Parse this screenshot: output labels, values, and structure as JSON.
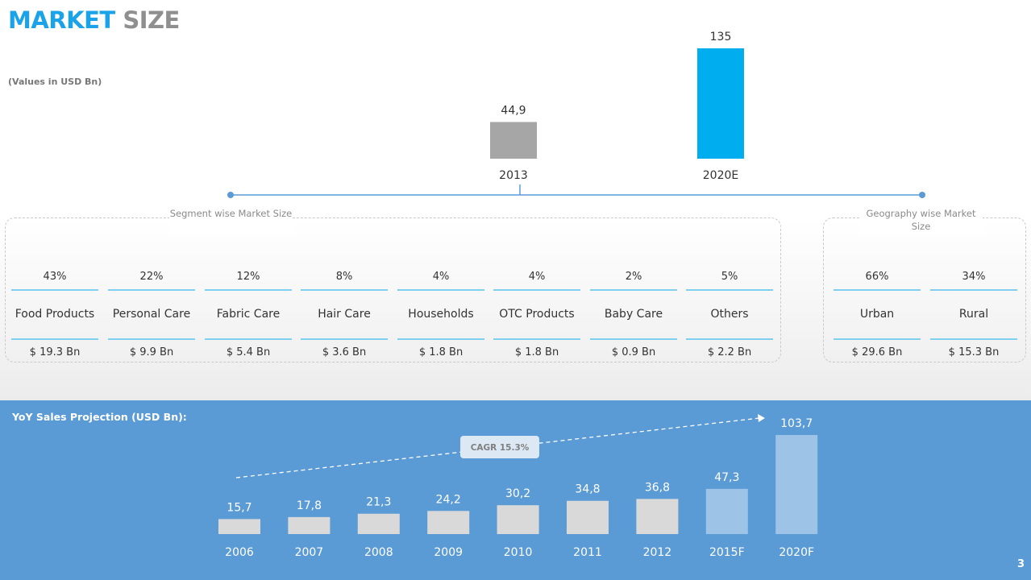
{
  "header": {
    "title_part1": "MARKET",
    "title_part2": "SIZE",
    "subnote": "(Values in USD Bn)"
  },
  "segments_label": "Segment wise Market Size",
  "geography_label": "Geography wise Market Size",
  "segments": [
    {
      "pct": "43%",
      "name": "Food Products",
      "value": "$ 19.3 Bn"
    },
    {
      "pct": "22%",
      "name": "Personal Care",
      "value": "$ 9.9 Bn"
    },
    {
      "pct": "12%",
      "name": "Fabric Care",
      "value": "$ 5.4 Bn"
    },
    {
      "pct": "8%",
      "name": "Hair Care",
      "value": "$ 3.6 Bn"
    },
    {
      "pct": "4%",
      "name": "Households",
      "value": "$ 1.8 Bn"
    },
    {
      "pct": "4%",
      "name": "OTC Products",
      "value": "$ 1.8 Bn"
    },
    {
      "pct": "2%",
      "name": "Baby Care",
      "value": "$ 0.9 Bn"
    },
    {
      "pct": "5%",
      "name": "Others",
      "value": "$ 2.2 Bn"
    }
  ],
  "geography": [
    {
      "pct": "66%",
      "name": "Urban",
      "value": "$ 29.6 Bn"
    },
    {
      "pct": "34%",
      "name": "Rural",
      "value": "$ 15.3 Bn"
    }
  ],
  "bottom": {
    "title": "YoY Sales Projection (USD Bn):",
    "cagr_label": "CAGR 15.3%"
  },
  "page_number": "3",
  "colors": {
    "accent_blue": "#1aa3e8",
    "bar_2013": "#a6a6a6",
    "bar_2020E": "#00aeef",
    "panel_blue": "#5b9bd5",
    "bar_actual": "#d9d9d9",
    "bar_forecast": "#9dc3e6",
    "divider": "#7ed0ee"
  },
  "chart_data": [
    {
      "type": "bar",
      "categories": [
        "2013",
        "2020E"
      ],
      "values": [
        44.9,
        135
      ],
      "value_labels": [
        "44,9",
        "135"
      ],
      "title": "",
      "xlabel": "",
      "ylabel": "",
      "ylim": [
        0,
        135
      ]
    },
    {
      "type": "bar",
      "categories": [
        "2006",
        "2007",
        "2008",
        "2009",
        "2010",
        "2011",
        "2012",
        "2015F",
        "2020F"
      ],
      "values": [
        15.7,
        17.8,
        21.3,
        24.2,
        30.2,
        34.8,
        36.8,
        47.3,
        103.7
      ],
      "value_labels": [
        "15,7",
        "17,8",
        "21,3",
        "24,2",
        "30,2",
        "34,8",
        "36,8",
        "47,3",
        "103,7"
      ],
      "forecast": [
        false,
        false,
        false,
        false,
        false,
        false,
        false,
        true,
        true
      ],
      "title": "YoY Sales Projection (USD Bn):",
      "annotation": "CAGR 15.3%",
      "xlabel": "",
      "ylabel": "",
      "ylim": [
        0,
        103.7
      ]
    }
  ]
}
